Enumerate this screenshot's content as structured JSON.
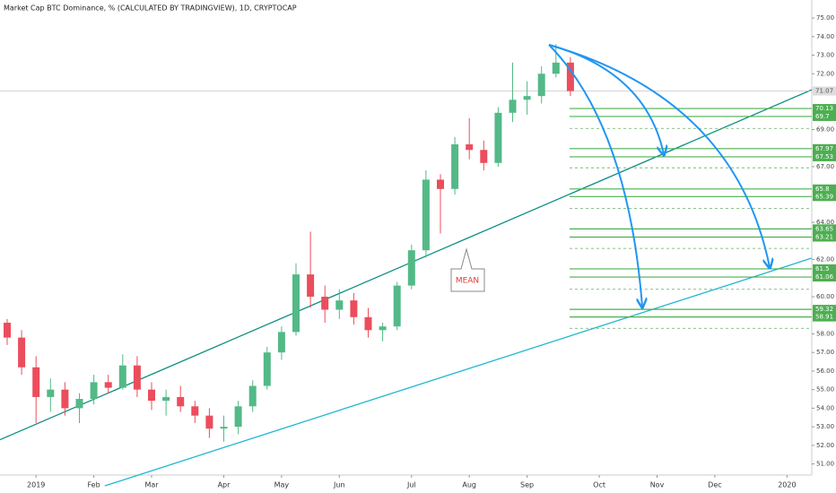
{
  "chart_data": {
    "type": "candlestick",
    "title": "Market Cap BTC Dominance, % (CALCULATED BY TRADINGVIEW), 1D, CRYPTOCAP",
    "categories": [
      null,
      null,
      "2019",
      null,
      null,
      null,
      "Feb",
      null,
      null,
      null,
      "Mar",
      null,
      null,
      null,
      null,
      "Apr",
      null,
      null,
      null,
      "May",
      null,
      null,
      null,
      "Jun",
      null,
      null,
      null,
      null,
      "Jul",
      null,
      null,
      null,
      "Aug",
      null,
      null,
      null,
      "Sep",
      null,
      null,
      null,
      null,
      "Oct",
      null,
      null,
      null,
      "Nov",
      null,
      null,
      null,
      "Dec",
      null,
      null,
      null,
      null,
      "2020",
      null
    ],
    "open": [
      58.6,
      57.8,
      56.2,
      54.6,
      55.0,
      54.0,
      54.5,
      55.4,
      55.1,
      56.3,
      55.0,
      54.4,
      54.6,
      54.1,
      53.6,
      52.9,
      53.0,
      54.1,
      55.2,
      57.0,
      58.1,
      61.2,
      60.0,
      59.3,
      59.8,
      58.9,
      58.2,
      58.4,
      60.6,
      62.5,
      66.3,
      65.8,
      68.2,
      67.9,
      67.2,
      69.9,
      70.6,
      70.8,
      72.0,
      72.6,
      null,
      null,
      null,
      null,
      null,
      null,
      null,
      null,
      null,
      null,
      null,
      null,
      null,
      null,
      null,
      null
    ],
    "high": [
      58.8,
      58.2,
      56.8,
      55.6,
      55.4,
      54.8,
      55.8,
      55.8,
      56.9,
      56.8,
      55.4,
      55.0,
      55.2,
      54.4,
      54.0,
      53.6,
      54.4,
      55.5,
      57.3,
      58.4,
      61.8,
      63.5,
      60.6,
      60.4,
      60.2,
      59.4,
      58.6,
      60.8,
      62.8,
      66.8,
      66.6,
      68.6,
      69.6,
      68.4,
      70.2,
      72.6,
      71.6,
      72.4,
      73.6,
      72.9,
      null,
      null,
      null,
      null,
      null,
      null,
      null,
      null,
      null,
      null,
      null,
      null,
      null,
      null,
      null,
      null
    ],
    "low": [
      57.4,
      55.8,
      53.2,
      53.8,
      53.6,
      53.2,
      54.2,
      54.8,
      55.0,
      54.6,
      53.9,
      53.6,
      53.8,
      53.2,
      52.4,
      52.2,
      52.6,
      53.8,
      55.0,
      56.6,
      57.9,
      59.4,
      58.6,
      58.8,
      58.5,
      57.8,
      57.6,
      58.2,
      60.4,
      62.1,
      63.4,
      65.5,
      67.4,
      66.8,
      67.0,
      69.4,
      69.8,
      70.4,
      71.8,
      70.8,
      null,
      null,
      null,
      null,
      null,
      null,
      null,
      null,
      null,
      null,
      null,
      null,
      null,
      null,
      null,
      null
    ],
    "close": [
      57.8,
      56.2,
      54.6,
      55.0,
      54.0,
      54.5,
      55.4,
      55.1,
      56.3,
      55.0,
      54.4,
      54.6,
      54.1,
      53.6,
      52.9,
      53.0,
      54.1,
      55.2,
      57.0,
      58.1,
      61.2,
      60.0,
      59.3,
      59.8,
      58.9,
      58.2,
      58.4,
      60.6,
      62.5,
      66.3,
      65.8,
      68.2,
      67.9,
      67.2,
      69.9,
      70.6,
      70.8,
      72.0,
      72.6,
      71.07,
      null,
      null,
      null,
      null,
      null,
      null,
      null,
      null,
      null,
      null,
      null,
      null,
      null,
      null,
      null,
      null
    ],
    "up_color": "#53b987",
    "down_color": "#eb4d5c",
    "ylim": [
      50.4,
      75.97
    ],
    "yticks": [
      {
        "value": 51,
        "label": "51.00"
      },
      {
        "value": 52,
        "label": "52.00"
      },
      {
        "value": 53,
        "label": "53.00"
      },
      {
        "value": 54,
        "label": "54.00"
      },
      {
        "value": 55,
        "label": "55.00"
      },
      {
        "value": 56,
        "label": "56.00"
      },
      {
        "value": 57,
        "label": "57.00"
      },
      {
        "value": 58,
        "label": "58.00"
      },
      {
        "value": 60,
        "label": "60.00"
      },
      {
        "value": 62,
        "label": "62.00"
      },
      {
        "value": 64,
        "label": "64.00"
      },
      {
        "value": 67,
        "label": "67.00"
      },
      {
        "value": 69,
        "label": "69.00"
      },
      {
        "value": 72,
        "label": "72.00"
      },
      {
        "value": 73,
        "label": "73.00"
      },
      {
        "value": 74,
        "label": "74.00"
      },
      {
        "value": 75,
        "label": "75.00"
      }
    ],
    "levels": [
      70.13,
      69.7,
      67.97,
      67.53,
      65.8,
      65.39,
      63.65,
      63.21,
      61.5,
      61.06,
      59.32,
      58.91
    ],
    "level_color": "#4caf50",
    "dashed_levels": [
      69.06,
      66.94,
      64.76,
      62.6,
      60.4,
      58.3
    ],
    "trendlines": [
      {
        "color": "#0e8f83",
        "x": [
          0,
          55
        ],
        "y": [
          52.47,
          70.9
        ]
      },
      {
        "color": "#20b8d0",
        "x": [
          8,
          55
        ],
        "y": [
          50.13,
          61.9
        ]
      }
    ],
    "annotation": "MEAN"
  }
}
